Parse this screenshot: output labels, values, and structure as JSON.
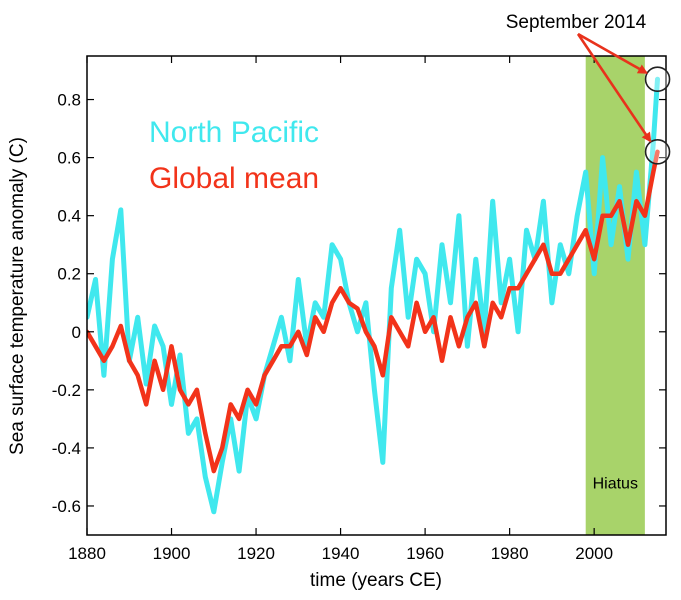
{
  "chart_data": {
    "type": "line",
    "xlabel": "time (years CE)",
    "ylabel": "Sea surface temperature anomaly (C)",
    "xlim": [
      1880,
      2017
    ],
    "ylim": [
      -0.7,
      0.95
    ],
    "xticks": [
      1880,
      1900,
      1920,
      1940,
      1960,
      1980,
      2000
    ],
    "xtick_labels": [
      "1880",
      "1900",
      "1920",
      "1940",
      "1960",
      "1980",
      "2000"
    ],
    "yticks": [
      -0.6,
      -0.4,
      -0.2,
      0,
      0.2,
      0.4,
      0.6,
      0.8
    ],
    "ytick_labels": [
      "-0.6",
      "-0.4",
      "-0.2",
      "0",
      "0.2",
      "0.4",
      "0.6",
      "0.8"
    ],
    "grid": false,
    "legend_placement": "top-left",
    "colors": {
      "north_pacific": "#40e8ee",
      "global_mean": "#f2331a",
      "hiatus_band": "#a8d36a",
      "arrow": "#e8321c"
    },
    "series": [
      {
        "name": "North Pacific",
        "key": "north_pacific",
        "x": [
          1880,
          1882,
          1884,
          1886,
          1888,
          1890,
          1892,
          1894,
          1896,
          1898,
          1900,
          1902,
          1904,
          1906,
          1908,
          1910,
          1912,
          1914,
          1916,
          1918,
          1920,
          1922,
          1924,
          1926,
          1928,
          1930,
          1932,
          1934,
          1936,
          1938,
          1940,
          1942,
          1944,
          1946,
          1948,
          1950,
          1952,
          1954,
          1956,
          1958,
          1960,
          1962,
          1964,
          1966,
          1968,
          1970,
          1972,
          1974,
          1976,
          1978,
          1980,
          1982,
          1984,
          1986,
          1988,
          1990,
          1992,
          1994,
          1996,
          1998,
          2000,
          2002,
          2004,
          2006,
          2008,
          2010,
          2012,
          2014,
          2015
        ],
        "y": [
          0.05,
          0.18,
          -0.15,
          0.25,
          0.42,
          -0.1,
          0.05,
          -0.18,
          0.02,
          -0.05,
          -0.25,
          -0.08,
          -0.35,
          -0.3,
          -0.5,
          -0.62,
          -0.45,
          -0.3,
          -0.48,
          -0.22,
          -0.3,
          -0.15,
          -0.05,
          0.05,
          -0.1,
          0.18,
          -0.05,
          0.1,
          0.05,
          0.3,
          0.25,
          0.1,
          0.0,
          0.1,
          -0.2,
          -0.45,
          0.15,
          0.35,
          0.05,
          0.25,
          0.2,
          0.0,
          0.3,
          0.1,
          0.4,
          -0.05,
          0.25,
          0.0,
          0.45,
          0.1,
          0.25,
          0.0,
          0.35,
          0.25,
          0.45,
          0.1,
          0.3,
          0.2,
          0.4,
          0.55,
          0.2,
          0.6,
          0.3,
          0.5,
          0.25,
          0.55,
          0.3,
          0.65,
          0.87
        ]
      },
      {
        "name": "Global mean",
        "key": "global_mean",
        "x": [
          1880,
          1882,
          1884,
          1886,
          1888,
          1890,
          1892,
          1894,
          1896,
          1898,
          1900,
          1902,
          1904,
          1906,
          1908,
          1910,
          1912,
          1914,
          1916,
          1918,
          1920,
          1922,
          1924,
          1926,
          1928,
          1930,
          1932,
          1934,
          1936,
          1938,
          1940,
          1942,
          1944,
          1946,
          1948,
          1950,
          1952,
          1954,
          1956,
          1958,
          1960,
          1962,
          1964,
          1966,
          1968,
          1970,
          1972,
          1974,
          1976,
          1978,
          1980,
          1982,
          1984,
          1986,
          1988,
          1990,
          1992,
          1994,
          1996,
          1998,
          2000,
          2002,
          2004,
          2006,
          2008,
          2010,
          2012,
          2014,
          2015
        ],
        "y": [
          0.0,
          -0.05,
          -0.1,
          -0.05,
          0.02,
          -0.1,
          -0.15,
          -0.25,
          -0.1,
          -0.2,
          -0.05,
          -0.2,
          -0.25,
          -0.2,
          -0.35,
          -0.48,
          -0.4,
          -0.25,
          -0.3,
          -0.2,
          -0.25,
          -0.15,
          -0.1,
          -0.05,
          -0.05,
          0.0,
          -0.08,
          0.05,
          0.0,
          0.1,
          0.15,
          0.1,
          0.08,
          0.0,
          -0.05,
          -0.15,
          0.05,
          0.0,
          -0.05,
          0.1,
          0.0,
          0.05,
          -0.1,
          0.05,
          -0.05,
          0.05,
          0.1,
          -0.05,
          0.1,
          0.05,
          0.15,
          0.15,
          0.2,
          0.25,
          0.3,
          0.2,
          0.2,
          0.25,
          0.3,
          0.35,
          0.25,
          0.4,
          0.4,
          0.45,
          0.3,
          0.45,
          0.4,
          0.55,
          0.62
        ]
      }
    ],
    "legend": [
      {
        "label": "North Pacific",
        "key": "north_pacific"
      },
      {
        "label": "Global mean",
        "key": "global_mean"
      }
    ],
    "annotations": {
      "hiatus": {
        "label": "Hiatus",
        "x_start": 1998,
        "x_end": 2012
      },
      "callout": {
        "label": "September 2014",
        "points": [
          {
            "series": "North Pacific",
            "x": 2015,
            "y": 0.87
          },
          {
            "series": "Global mean",
            "x": 2015,
            "y": 0.62
          }
        ]
      }
    }
  }
}
